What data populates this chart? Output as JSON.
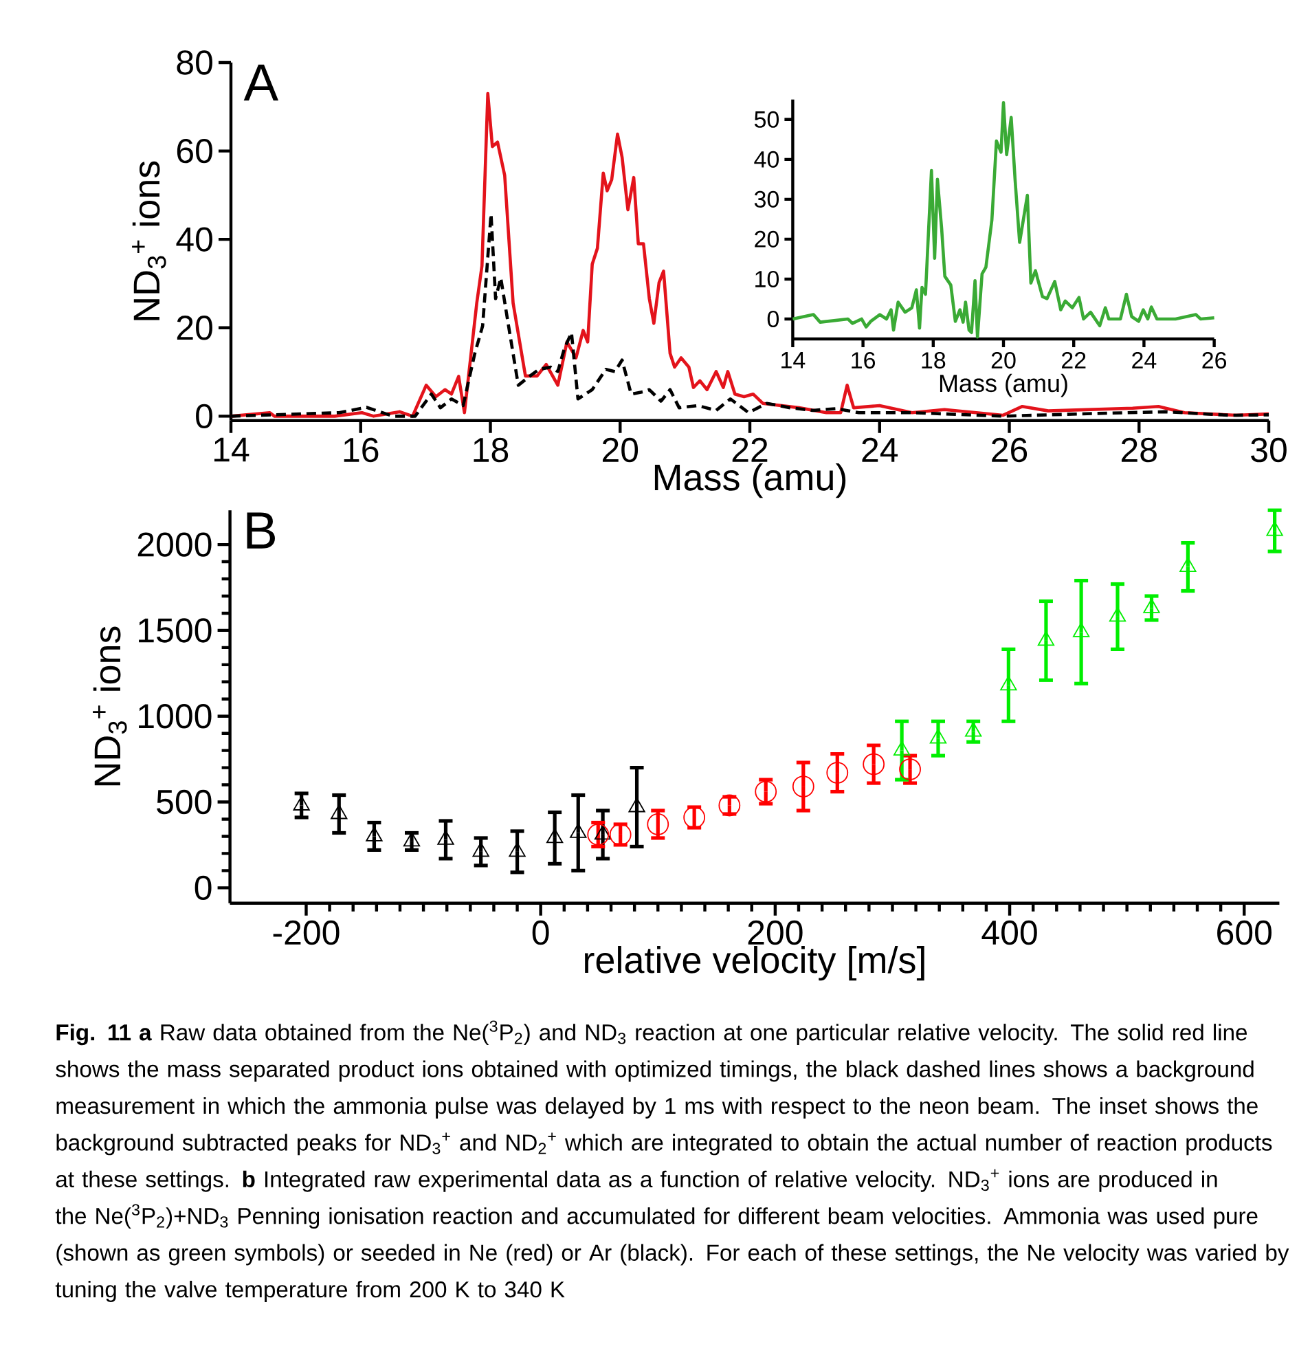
{
  "chart_data": [
    {
      "type": "line",
      "xlabel": "Mass (amu)",
      "ylabel": "ND$_{3}$$^{+}$ ions",
      "annotations": [
        "A"
      ],
      "xlim": [
        14,
        30
      ],
      "ylim": [
        -1,
        80
      ],
      "xticks": [
        14,
        16,
        18,
        20,
        22,
        24,
        26,
        28,
        30
      ],
      "yticks": [
        0,
        20,
        40,
        60,
        80
      ],
      "series": [
        {
          "color": "#e3131b",
          "line_style": "solid",
          "x": [
            14,
            14.6,
            14.67,
            15.6,
            16.02,
            16.2,
            16.6,
            16.8,
            17.01,
            17.16,
            17.3,
            17.4,
            17.51,
            17.6,
            17.79,
            17.87,
            17.96,
            18.03,
            18.11,
            18.22,
            18.35,
            18.54,
            18.72,
            18.86,
            19.04,
            19.18,
            19.32,
            19.43,
            19.5,
            19.57,
            19.65,
            19.74,
            19.8,
            19.87,
            19.96,
            20.03,
            20.12,
            20.21,
            20.28,
            20.36,
            20.45,
            20.52,
            20.6,
            20.67,
            20.77,
            20.84,
            20.94,
            21.06,
            21.13,
            21.23,
            21.34,
            21.48,
            21.59,
            21.66,
            21.77,
            21.91,
            22.05,
            22.2,
            22.48,
            22.76,
            23.18,
            23.4,
            23.5,
            23.6,
            24.0,
            24.5,
            25.0,
            25.9,
            26.2,
            26.6,
            27.9,
            28.3,
            28.7,
            29.5,
            30
          ],
          "values": [
            0,
            0.8,
            0,
            0,
            0.8,
            0,
            1,
            0,
            7,
            4.4,
            6,
            5,
            9,
            0.8,
            25.6,
            34,
            73,
            61,
            62,
            54.5,
            25.6,
            9.1,
            9.1,
            11.7,
            7,
            16.8,
            13.2,
            19.4,
            16.8,
            34.4,
            38,
            55,
            51,
            53.5,
            63.8,
            58.6,
            46.7,
            54,
            39,
            39,
            26.6,
            21,
            30.2,
            32.8,
            14.2,
            11.1,
            13.2,
            11.1,
            6.5,
            8,
            6,
            10.1,
            6.5,
            10.1,
            5,
            4.4,
            5,
            2.9,
            2.4,
            1.9,
            0.8,
            0.8,
            7,
            1.9,
            2.4,
            0.8,
            1.5,
            0.2,
            2.2,
            1.2,
            1.8,
            2.2,
            0.8,
            0.2,
            0.5
          ]
        },
        {
          "color": "#000000",
          "line_style": "dashed",
          "x": [
            14,
            15.67,
            16.09,
            16.5,
            16.84,
            17.09,
            17.23,
            17.4,
            17.58,
            17.76,
            17.88,
            18.01,
            18.08,
            18.16,
            18.28,
            18.43,
            18.61,
            18.75,
            18.93,
            19.04,
            19.14,
            19.25,
            19.35,
            19.57,
            19.78,
            19.92,
            20.03,
            20.17,
            20.35,
            20.45,
            20.63,
            20.77,
            20.91,
            21.2,
            21.48,
            21.7,
            21.98,
            22.26,
            22.62,
            22.97,
            23.33,
            23.68,
            24.5,
            25.9,
            27.3,
            28.4,
            29.4,
            30
          ],
          "values": [
            0,
            0.8,
            2,
            0,
            0,
            5,
            1.9,
            3.9,
            2.4,
            14.2,
            20.4,
            45.7,
            26.6,
            31.3,
            20.4,
            7,
            9.1,
            10.6,
            11.1,
            10.1,
            15.3,
            18.9,
            3.9,
            6,
            10.6,
            10.1,
            12.7,
            5,
            5.5,
            6,
            3.4,
            6,
            1.9,
            2.4,
            1.3,
            3.9,
            0.8,
            2.9,
            1.9,
            1.3,
            1.7,
            0.8,
            0.8,
            0,
            0.6,
            1,
            0.2,
            0.3
          ]
        }
      ]
    },
    {
      "type": "line",
      "xlabel": "Mass (amu)",
      "xlim": [
        14,
        26
      ],
      "ylim": [
        -5,
        55
      ],
      "xticks": [
        14,
        16,
        18,
        20,
        22,
        24,
        26
      ],
      "yticks": [
        0,
        10,
        20,
        30,
        40,
        50
      ],
      "series": [
        {
          "color": "#3aaa35",
          "line_style": "solid",
          "x": [
            14,
            14.59,
            14.78,
            15.57,
            15.7,
            15.96,
            16.09,
            16.22,
            16.48,
            16.67,
            16.8,
            16.87,
            17.0,
            17.2,
            17.39,
            17.52,
            17.61,
            17.68,
            17.78,
            17.95,
            18.04,
            18.12,
            18.24,
            18.33,
            18.5,
            18.63,
            18.76,
            18.85,
            18.92,
            19.02,
            19.09,
            19.19,
            19.26,
            19.39,
            19.5,
            19.67,
            19.8,
            19.93,
            20.0,
            20.09,
            20.22,
            20.33,
            20.46,
            20.68,
            20.78,
            20.91,
            21.11,
            21.24,
            21.46,
            21.63,
            21.76,
            21.96,
            22.15,
            22.28,
            22.48,
            22.74,
            22.9,
            23.0,
            23.33,
            23.5,
            23.65,
            23.85,
            23.98,
            24.11,
            24.21,
            24.37,
            24.9,
            25.48,
            25.61,
            26
          ],
          "values": [
            0,
            1.1,
            -0.8,
            0,
            -1.1,
            0,
            -2,
            -0.6,
            1.1,
            0,
            2.3,
            -2.8,
            4.2,
            1.7,
            2.8,
            7.3,
            -2.3,
            7.9,
            6.2,
            37.2,
            15.2,
            35,
            22.6,
            10.7,
            8.5,
            -0.6,
            2.3,
            -0.8,
            4.2,
            -2.8,
            -3.4,
            9.6,
            -4.5,
            11.3,
            13,
            24.8,
            44.6,
            41.8,
            54.2,
            41.2,
            50.5,
            35,
            19.2,
            31,
            9,
            12.1,
            5.6,
            5.1,
            9.4,
            2.3,
            4.5,
            2.8,
            5.4,
            0,
            1.7,
            -1.7,
            2.8,
            0,
            0,
            6.2,
            0.6,
            -0.6,
            2.3,
            0,
            3,
            0,
            0,
            1.1,
            0,
            0.3
          ]
        }
      ]
    },
    {
      "type": "scatter",
      "xlabel": "relative velocity [m/s]",
      "ylabel": "ND$_{3}$$^{+}$ ions",
      "annotations": [
        "B",
        "**Fig. 11** **a** Raw data obtained from the Ne($^{3}$P$_{2}$) and ND$_{3}$ reaction at one particular relative velocity. The solid red line shows the mass separated product ions obtained with optimized timings, the black dashed lines shows a background measurement in which the ammonia pulse was delayed by 1 ms with respect to the neon beam. The inset shows the background subtracted peaks for ND$_{3}$$^{+}$ and ND$_{2}$$^{+}$ which are integrated to obtain the actual number of reaction products at these settings. **b** Integrated raw experimental data as a function of relative velocity. ND$_{3}$$^{+}$ ions are produced in the Ne($^{3}$P$_{2}$)+ND$_{3}$ Penning ionisation reaction and accumulated for different beam velocities. Ammonia was used pure (shown as green symbols) or seeded in Ne (red) or Ar (black). For each of these settings, the Ne velocity was varied by tuning the valve temperature from 200 K to 340 K"
      ],
      "xlim": [
        -265,
        630
      ],
      "ylim": [
        -90,
        2200
      ],
      "xticks": [
        -200,
        0,
        200,
        400,
        600
      ],
      "yticks": [
        0,
        500,
        1000,
        1500,
        2000
      ],
      "series": [
        {
          "color": "#000000",
          "marker": "triangle",
          "x": [
            -204,
            -172,
            -142,
            -110,
            -81,
            -51,
            -20,
            12,
            32,
            53,
            82
          ],
          "values": [
            480,
            430,
            300,
            270,
            280,
            210,
            210,
            290,
            320,
            310,
            470
          ],
          "errors": [
            70,
            110,
            80,
            50,
            110,
            80,
            120,
            150,
            220,
            140,
            230
          ]
        },
        {
          "color": "#ff0000",
          "marker": "circle",
          "x": [
            49,
            68,
            100,
            131,
            161,
            192,
            224,
            253,
            284,
            315
          ],
          "values": [
            310,
            310,
            370,
            410,
            480,
            560,
            590,
            670,
            720,
            690
          ],
          "errors": [
            70,
            60,
            80,
            60,
            50,
            70,
            140,
            110,
            110,
            80
          ]
        },
        {
          "color": "#00ee00",
          "marker": "triangle",
          "x": [
            308,
            339,
            369,
            399,
            431,
            461,
            492,
            521,
            552,
            626
          ],
          "values": [
            800,
            870,
            910,
            1180,
            1440,
            1490,
            1580,
            1630,
            1870,
            2080
          ],
          "errors": [
            170,
            100,
            60,
            210,
            230,
            300,
            190,
            70,
            140,
            120
          ]
        }
      ]
    }
  ]
}
